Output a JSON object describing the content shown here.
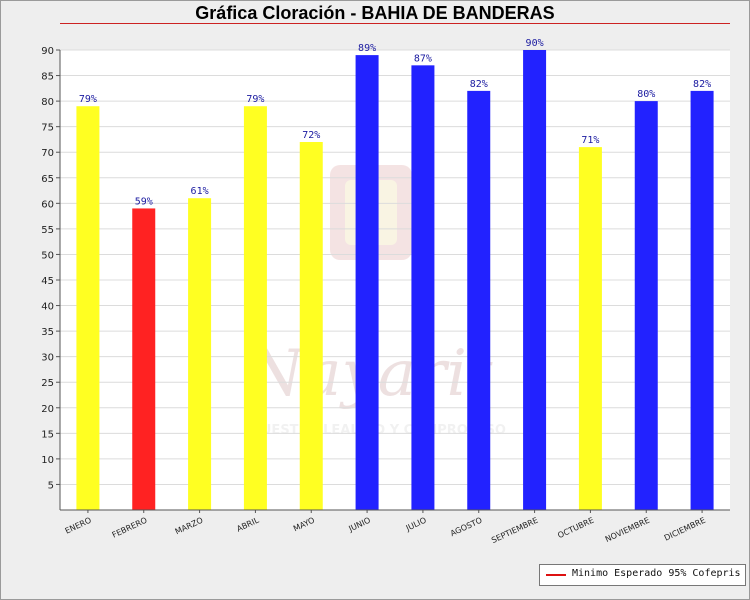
{
  "chart_data": {
    "type": "bar",
    "title": "Gráfica Cloración - BAHIA DE BANDERAS",
    "categories": [
      "ENERO",
      "FEBRERO",
      "MARZO",
      "ABRIL",
      "MAYO",
      "JUNIO",
      "JULIO",
      "AGOSTO",
      "SEPTIEMBRE",
      "OCTUBRE",
      "NOVIEMBRE",
      "DICIEMBRE"
    ],
    "values": [
      79,
      59,
      61,
      79,
      72,
      89,
      87,
      82,
      90,
      71,
      80,
      82
    ],
    "value_labels": [
      "79%",
      "59%",
      "61%",
      "79%",
      "72%",
      "89%",
      "87%",
      "82%",
      "90%",
      "71%",
      "80%",
      "82%"
    ],
    "bar_colors": [
      "#ffff22",
      "#ff2222",
      "#ffff22",
      "#ffff22",
      "#ffff22",
      "#2222ff",
      "#2222ff",
      "#2222ff",
      "#2222ff",
      "#ffff22",
      "#2222ff",
      "#2222ff"
    ],
    "ylim": [
      0,
      90
    ],
    "yticks": [
      5,
      10,
      15,
      20,
      25,
      30,
      35,
      40,
      45,
      50,
      55,
      60,
      65,
      70,
      75,
      80,
      85,
      90
    ],
    "xlabel": "",
    "ylabel": "",
    "grid": true,
    "legend": {
      "position": "bottom-right",
      "entries": [
        {
          "name": "Minimo Esperado 95% Cofepris",
          "color": "#dd1111"
        }
      ]
    },
    "watermark": "Nayarit — Nuestra lealtad y compromiso"
  }
}
